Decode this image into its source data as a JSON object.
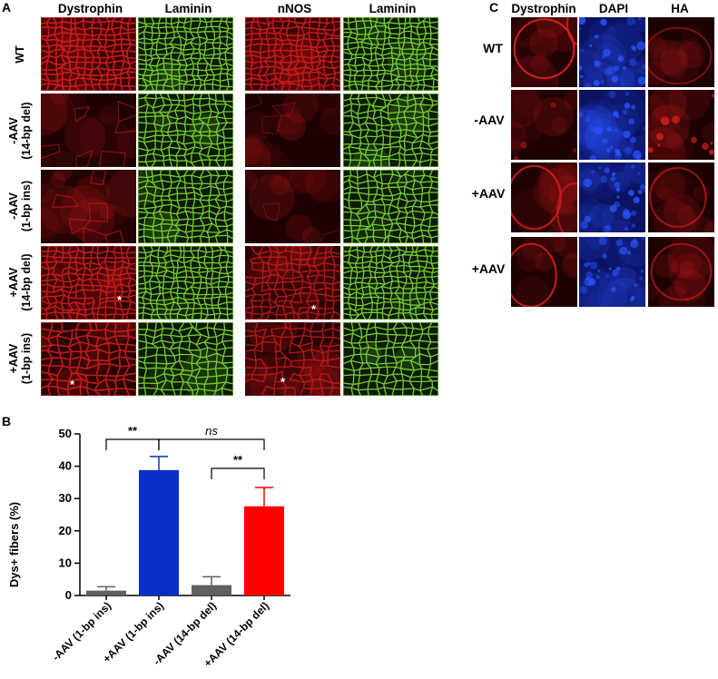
{
  "panels": {
    "A": {
      "letter": "A",
      "col_headers": [
        "Dystrophin",
        "Laminin",
        "nNOS",
        "Laminin"
      ],
      "row_labels": [
        {
          "line1": "WT",
          "line2": ""
        },
        {
          "line1": "-AAV",
          "line2": "(14-bp del)"
        },
        {
          "line1": "-AAV",
          "line2": "(1-bp ins)"
        },
        {
          "line1": "+AAV",
          "line2": "(14-bp del)"
        },
        {
          "line1": "+AAV",
          "line2": "(1-bp ins)"
        }
      ],
      "asterisk": "*"
    },
    "B": {
      "letter": "B"
    },
    "C": {
      "letter": "C",
      "col_headers": [
        "Dystrophin",
        "DAPI",
        "HA"
      ],
      "row_labels": [
        "WT",
        "-AAV",
        "+AAV",
        "+AAV"
      ]
    }
  },
  "colors": {
    "red": "#d81e1e",
    "green": "#7fe03a",
    "blue": "#2b55ff",
    "bar_gray": "#5f5f5f",
    "bar_blue": "#0a2fc8",
    "bar_red": "#ff0000"
  },
  "chart_data": {
    "type": "bar",
    "ylabel": "Dys+ fibers (%)",
    "xlabel": "",
    "ylim": [
      0,
      50
    ],
    "yticks": [
      0,
      10,
      20,
      30,
      40,
      50
    ],
    "categories": [
      "-AAV (1-bp ins)",
      "+AAV (1-bp ins)",
      "-AAV (14-bp del)",
      "+AAV (14-bp del)"
    ],
    "values": [
      1.5,
      38.8,
      3.2,
      27.6
    ],
    "errors": [
      1.2,
      4.2,
      2.6,
      5.8
    ],
    "bar_colors": [
      "#5f5f5f",
      "#0a2fc8",
      "#5f5f5f",
      "#ff0000"
    ],
    "significance": [
      {
        "from": 0,
        "to": 1,
        "label": "**",
        "italic": false
      },
      {
        "from": 1,
        "to": 3,
        "label": "ns",
        "italic": true
      },
      {
        "from": 2,
        "to": 3,
        "label": "**",
        "italic": false
      }
    ]
  }
}
